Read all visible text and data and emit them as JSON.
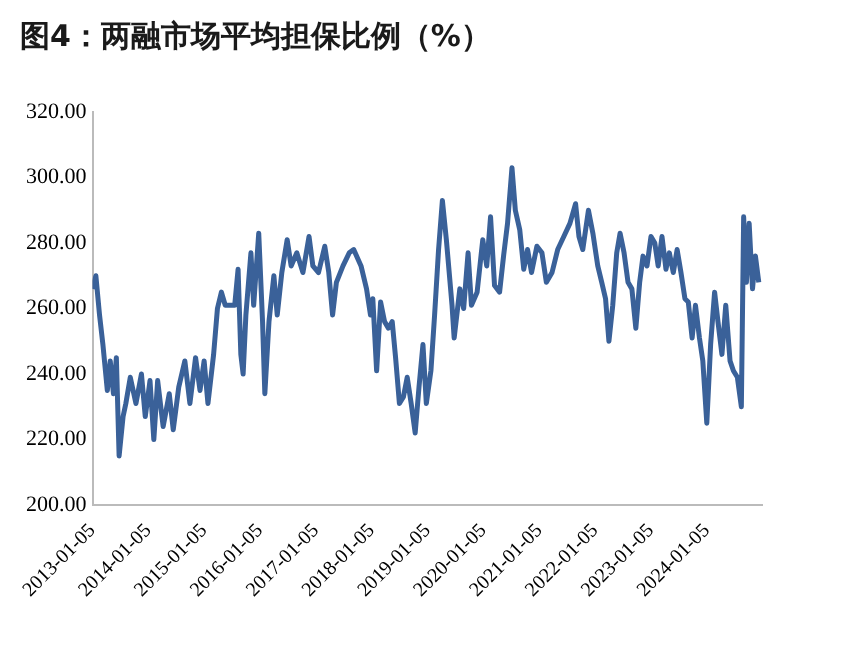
{
  "chart_data": {
    "type": "line",
    "title": "图4：两融市场平均担保比例（%）",
    "x": [
      "2013-01-05",
      "2013-01-27",
      "2013-02-20",
      "2013-03-14",
      "2013-04-12",
      "2013-05-01",
      "2013-05-22",
      "2013-06-10",
      "2013-06-28",
      "2013-07-24",
      "2013-08-11",
      "2013-09-09",
      "2013-10-16",
      "2013-11-21",
      "2013-12-16",
      "2014-01-16",
      "2014-02-10",
      "2014-03-07",
      "2014-04-12",
      "2014-05-22",
      "2014-06-17",
      "2014-07-23",
      "2014-09-01",
      "2014-10-04",
      "2014-11-10",
      "2014-12-09",
      "2015-01-05",
      "2015-01-30",
      "2015-03-08",
      "2015-04-02",
      "2015-04-28",
      "2015-05-23",
      "2015-07-24",
      "2015-08-15",
      "2015-09-02",
      "2015-09-17",
      "2015-10-05",
      "2015-11-07",
      "2015-11-25",
      "2015-12-28",
      "2016-01-22",
      "2016-02-06",
      "2016-03-04",
      "2016-04-05",
      "2016-04-27",
      "2016-05-27",
      "2016-07-01",
      "2016-07-27",
      "2016-09-02",
      "2016-10-12",
      "2016-11-21",
      "2016-12-16",
      "2017-01-22",
      "2017-03-04",
      "2017-03-30",
      "2017-04-24",
      "2017-05-19",
      "2017-07-01",
      "2017-08-11",
      "2017-09-09",
      "2017-10-27",
      "2017-12-02",
      "2017-12-28",
      "2018-01-12",
      "2018-02-06",
      "2018-03-04",
      "2018-03-30",
      "2018-04-24",
      "2018-05-19",
      "2018-06-10",
      "2018-07-05",
      "2018-07-31",
      "2018-08-25",
      "2018-09-20",
      "2018-10-16",
      "2018-11-10",
      "2018-12-06",
      "2018-12-28",
      "2019-01-27",
      "2019-02-20",
      "2019-03-18",
      "2019-04-12",
      "2019-05-08",
      "2019-06-14",
      "2019-06-28",
      "2019-08-04",
      "2019-08-29",
      "2019-09-27",
      "2019-10-19",
      "2019-11-25",
      "2020-01-01",
      "2020-01-27",
      "2020-02-21",
      "2020-03-18",
      "2020-04-20",
      "2020-05-16",
      "2020-06-11",
      "2020-07-10",
      "2020-08-01",
      "2020-08-30",
      "2020-09-25",
      "2020-10-20",
      "2020-11-15",
      "2020-12-20",
      "2021-01-22",
      "2021-02-20",
      "2021-03-29",
      "2021-05-05",
      "2021-06-14",
      "2021-07-24",
      "2021-08-30",
      "2021-09-21",
      "2021-10-16",
      "2021-11-22",
      "2021-12-21",
      "2022-01-22",
      "2022-02-17",
      "2022-03-14",
      "2022-04-05",
      "2022-04-30",
      "2022-05-26",
      "2022-06-17",
      "2022-07-13",
      "2022-08-08",
      "2022-09-02",
      "2022-09-28",
      "2022-10-23",
      "2022-11-14",
      "2022-12-10",
      "2023-01-05",
      "2023-01-30",
      "2023-02-21",
      "2023-03-18",
      "2023-04-13",
      "2023-05-05",
      "2023-05-31",
      "2023-06-25",
      "2023-07-20",
      "2023-08-15",
      "2023-09-06",
      "2023-10-01",
      "2023-10-23",
      "2023-11-18",
      "2023-12-10",
      "2024-01-05",
      "2024-01-30",
      "2024-02-25",
      "2024-03-18",
      "2024-04-13",
      "2024-05-08",
      "2024-06-05",
      "2024-06-27",
      "2024-07-23",
      "2024-08-18",
      "2024-09-02",
      "2024-09-20",
      "2024-10-08",
      "2024-10-30",
      "2024-11-18",
      "2024-12-10"
    ],
    "series": [
      {
        "color": "#3a6199",
        "values": [
          266,
          270,
          258,
          249,
          235,
          244,
          234,
          245,
          215,
          227,
          231,
          239,
          231,
          240,
          227,
          238,
          220,
          238,
          224,
          234,
          223,
          236,
          244,
          231,
          245,
          235,
          244,
          231,
          246,
          260,
          265,
          261,
          261,
          272,
          246,
          240,
          258,
          277,
          261,
          283,
          256,
          234,
          256,
          270,
          258,
          271,
          281,
          273,
          277,
          271,
          282,
          273,
          271,
          279,
          271,
          258,
          268,
          273,
          277,
          278,
          273,
          266,
          258,
          263,
          241,
          262,
          256,
          254,
          256,
          245,
          231,
          233,
          239,
          231,
          222,
          236,
          249,
          231,
          241,
          258,
          278,
          293,
          281,
          261,
          251,
          266,
          260,
          277,
          261,
          265,
          281,
          273,
          288,
          267,
          265,
          276,
          286,
          303,
          290,
          284,
          272,
          278,
          271,
          279,
          277,
          268,
          271,
          278,
          282,
          286,
          292,
          282,
          278,
          290,
          283,
          273,
          268,
          263,
          250,
          261,
          277,
          283,
          277,
          268,
          266,
          254,
          268,
          276,
          273,
          282,
          280,
          273,
          282,
          272,
          277,
          271,
          278,
          271,
          263,
          262,
          251,
          261,
          251,
          244,
          225,
          249,
          265,
          256,
          246,
          261,
          244,
          241,
          239,
          230,
          288,
          268,
          286,
          266,
          276,
          268
        ]
      }
    ],
    "xlim": [
      "2013-01-05",
      "2024-12-31"
    ],
    "xticks": [
      "2013-01-05",
      "2014-01-05",
      "2015-01-05",
      "2016-01-05",
      "2017-01-05",
      "2018-01-05",
      "2019-01-05",
      "2020-01-05",
      "2021-01-05",
      "2022-01-05",
      "2023-01-05",
      "2024-01-05"
    ],
    "ylim": [
      200,
      320
    ],
    "yticks": [
      {
        "value": 200,
        "label": "200.00"
      },
      {
        "value": 220,
        "label": "220.00"
      },
      {
        "value": 240,
        "label": "240.00"
      },
      {
        "value": 260,
        "label": "260.00"
      },
      {
        "value": 280,
        "label": "280.00"
      },
      {
        "value": 300,
        "label": "300.00"
      },
      {
        "value": 320,
        "label": "320.00"
      }
    ],
    "grid": false,
    "legend": false,
    "marker": "none",
    "line_style": "solid"
  }
}
